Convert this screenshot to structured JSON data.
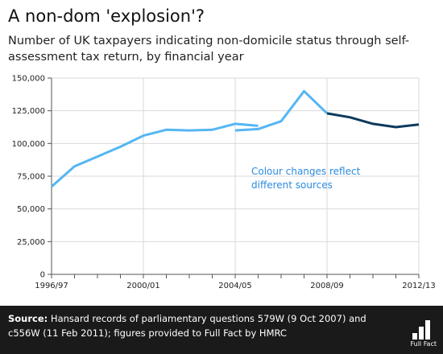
{
  "title": "A non-dom 'explosion'?",
  "subtitle": "Number of UK taxpayers indicating non-domicile status through self-assessment tax return, by financial year",
  "annotation": {
    "line1": "Colour changes reflect",
    "line2": "different sources"
  },
  "footer": {
    "source_label": "Source:",
    "source_text": "Hansard records of parliamentary questions 579W (9 Oct 2007) and c556W (11 Feb 2011); figures provided to Full Fact by HMRC"
  },
  "logo_text": "Full Fact",
  "colors": {
    "light_series": "#55b6f2",
    "dark_series": "#0d3a5c",
    "annotation": "#2b8be0",
    "grid": "#d9d9d9",
    "footer_bg": "#1a1a1a"
  },
  "chart_data": {
    "type": "line",
    "title": "A non-dom 'explosion'?",
    "subtitle": "Number of UK taxpayers indicating non-domicile status through self-assessment tax return, by financial year",
    "xlabel": "",
    "ylabel": "",
    "x_tick_labels": [
      "1996/97",
      "2000/01",
      "2004/05",
      "2008/09",
      "2012/13"
    ],
    "y_tick_labels": [
      "0",
      "25,000",
      "50,000",
      "75,000",
      "100,000",
      "125,000",
      "150,000"
    ],
    "ylim": [
      0,
      150000
    ],
    "grid": true,
    "legend": "none",
    "series": [
      {
        "color": "#55b6f2",
        "x": [
          "1996/97",
          "1997/98",
          "1998/99",
          "1999/00",
          "2000/01",
          "2001/02",
          "2002/03",
          "2003/04",
          "2004/05",
          "2005/06"
        ],
        "values": [
          67000,
          82500,
          90000,
          97500,
          106000,
          110500,
          110000,
          110500,
          115000,
          113500
        ]
      },
      {
        "color": "#55b6f2",
        "x": [
          "2004/05",
          "2005/06",
          "2006/07",
          "2007/08",
          "2008/09"
        ],
        "values": [
          110000,
          111000,
          117000,
          140000,
          123000
        ]
      },
      {
        "color": "#0d3a5c",
        "x": [
          "2008/09",
          "2009/10",
          "2010/11",
          "2011/12",
          "2012/13"
        ],
        "values": [
          123000,
          120000,
          115000,
          112500,
          114500
        ]
      }
    ]
  }
}
